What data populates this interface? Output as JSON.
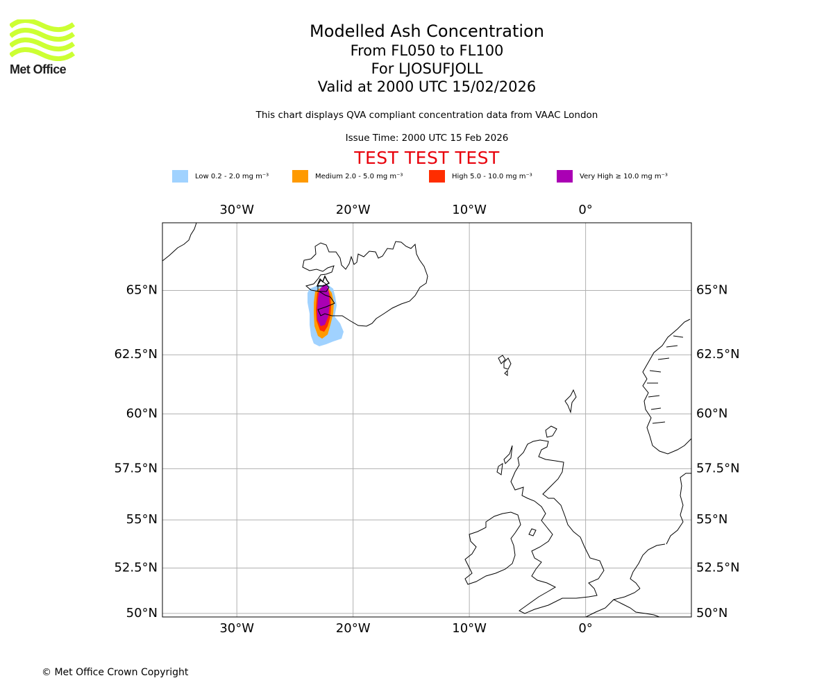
{
  "logo": {
    "text": "Met Office",
    "color": "#ccff33"
  },
  "header": {
    "title": "Modelled Ash Concentration",
    "level_range": "From FL050 to FL100",
    "location": "For LJOSUFJOLL",
    "valid_time": "Valid at 2000 UTC 15/02/2026",
    "description": "This chart displays QVA compliant concentration data from VAAC London",
    "issue_time": "Issue Time: 2000 UTC 15 Feb 2026",
    "test_banner": "TEST TEST TEST"
  },
  "legend": [
    {
      "label": "Low 0.2 - 2.0 mg m⁻³",
      "color": "#a0d2ff"
    },
    {
      "label": "Medium 2.0 - 5.0 mg m⁻³",
      "color": "#ff9a00"
    },
    {
      "label": "High 5.0 - 10.0 mg m⁻³",
      "color": "#ff2d00"
    },
    {
      "label": "Very High ≥ 10.0 mg m⁻³",
      "color": "#aa00b4"
    }
  ],
  "map": {
    "lon_range": [
      -36.4,
      9.1
    ],
    "lat_range": [
      49.8,
      67.4
    ],
    "lon_ticks": [
      {
        "value": -30,
        "label": "30°W"
      },
      {
        "value": -20,
        "label": "20°W"
      },
      {
        "value": -10,
        "label": "10°W"
      },
      {
        "value": 0,
        "label": "0°"
      }
    ],
    "lat_ticks": [
      {
        "value": 65,
        "label": "65°N"
      },
      {
        "value": 62.5,
        "label": "62.5°N"
      },
      {
        "value": 60,
        "label": "60°N"
      },
      {
        "value": 57.5,
        "label": "57.5°N"
      },
      {
        "value": 55,
        "label": "55°N"
      },
      {
        "value": 52.5,
        "label": "52.5°N"
      },
      {
        "value": 50,
        "label": "50°N"
      }
    ],
    "gridline_color": "#b0b0b0"
  },
  "footer": {
    "copyright": "© Met Office Crown Copyright"
  }
}
